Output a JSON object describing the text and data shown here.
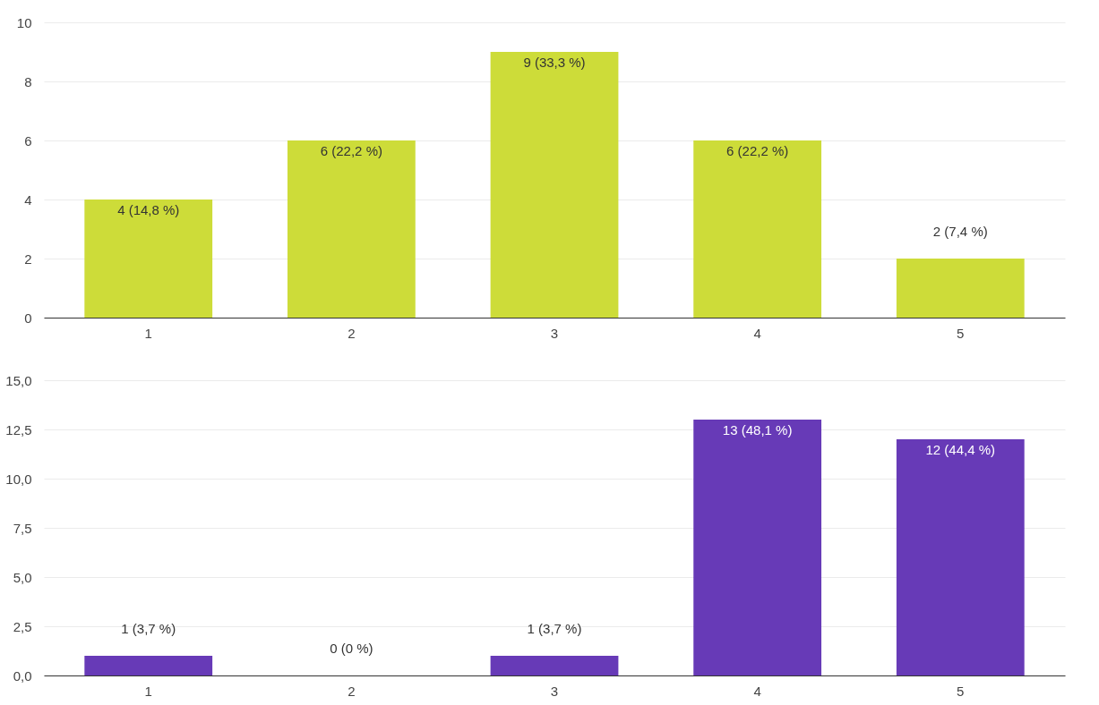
{
  "chart_data": [
    {
      "type": "bar",
      "categories": [
        "1",
        "2",
        "3",
        "4",
        "5"
      ],
      "values": [
        4,
        6,
        9,
        6,
        2
      ],
      "color": "#cddc39",
      "value_labels": [
        "4 (14,8 %)",
        "6 (22,2 %)",
        "9 (33,3 %)",
        "6 (22,2 %)",
        "2 (7,4 %)"
      ],
      "ylim": [
        0,
        10
      ],
      "yticks": [
        0,
        2,
        4,
        6,
        8,
        10
      ],
      "grid": "y"
    },
    {
      "type": "bar",
      "categories": [
        "1",
        "2",
        "3",
        "4",
        "5"
      ],
      "values": [
        1,
        0,
        1,
        13,
        12
      ],
      "color": "#673ab7",
      "value_labels": [
        "1 (3,7 %)",
        "0 (0 %)",
        "1 (3,7 %)",
        "13 (48,1 %)",
        "12 (44,4 %)"
      ],
      "ylim": [
        0,
        15
      ],
      "yticks": [
        {
          "value": 0,
          "label": "0,0"
        },
        {
          "value": 2.5,
          "label": "2,5"
        },
        {
          "value": 5,
          "label": "5,0"
        },
        {
          "value": 7.5,
          "label": "7,5"
        },
        {
          "value": 10,
          "label": "10,0"
        },
        {
          "value": 12.5,
          "label": "12,5"
        },
        {
          "value": 15,
          "label": "15,0"
        }
      ],
      "grid": "y"
    }
  ]
}
